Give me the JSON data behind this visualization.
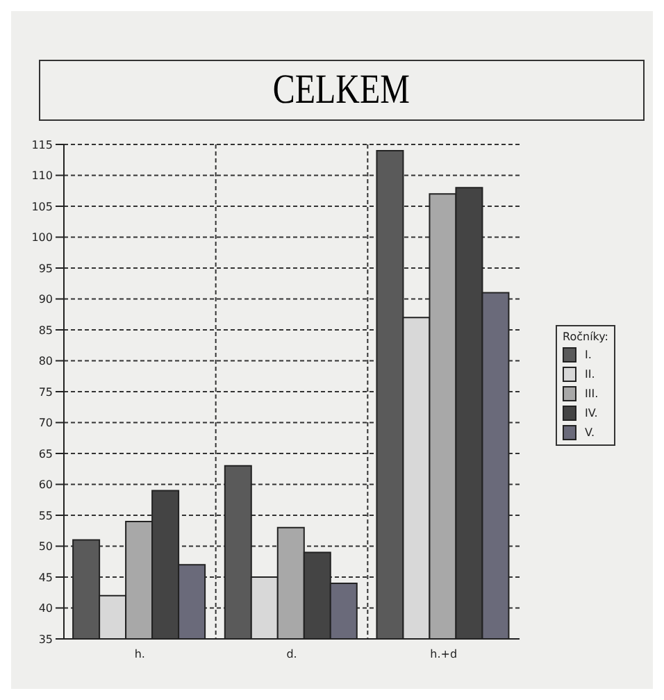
{
  "chart_data": {
    "type": "bar",
    "title": "CELKEM",
    "legend_title": "Ročníky:",
    "categories": [
      "h.",
      "d.",
      "h.+d"
    ],
    "series": [
      {
        "name": "I.",
        "color": "#5a5a5a",
        "values": [
          51,
          63,
          114
        ]
      },
      {
        "name": "II.",
        "color": "#d8d8d8",
        "values": [
          42,
          45,
          87
        ]
      },
      {
        "name": "III.",
        "color": "#a8a8a8",
        "values": [
          54,
          53,
          107
        ]
      },
      {
        "name": "IV.",
        "color": "#444444",
        "values": [
          59,
          49,
          108
        ]
      },
      {
        "name": "V.",
        "color": "#6a6a7a",
        "values": [
          47,
          44,
          91
        ]
      }
    ],
    "ylim": [
      35,
      115
    ],
    "yticks": [
      35,
      40,
      45,
      50,
      55,
      60,
      65,
      70,
      75,
      80,
      85,
      90,
      95,
      100,
      105,
      110,
      115
    ],
    "grid": true,
    "legend": "right"
  }
}
